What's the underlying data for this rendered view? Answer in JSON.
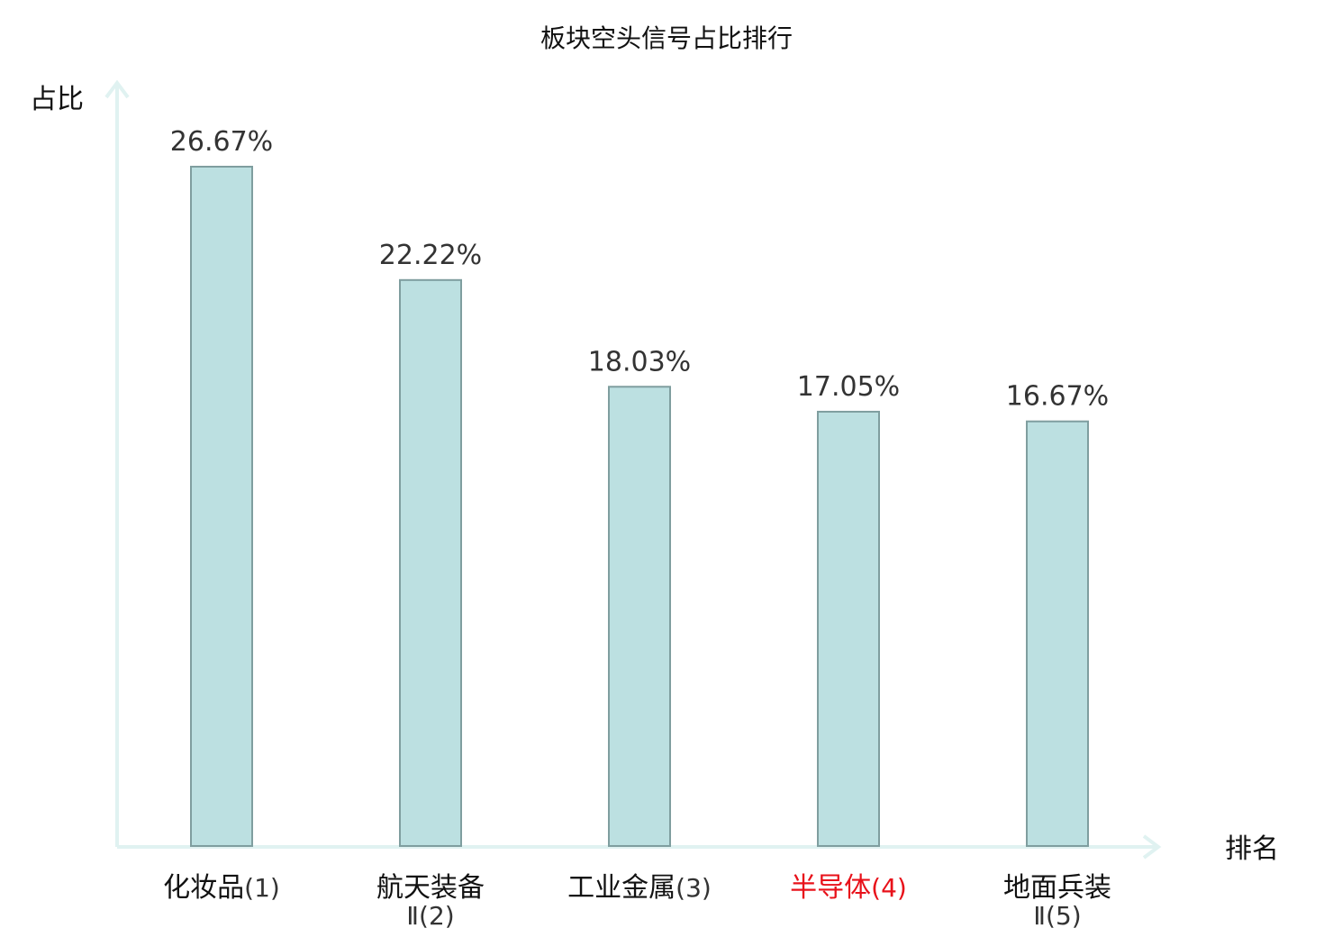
{
  "chart_data": {
    "type": "bar",
    "title": "板块空头信号占比排行",
    "ylabel": "占比",
    "xlabel": "排名",
    "categories": [
      {
        "name": "化妆品",
        "rank": "(1)",
        "line2": "",
        "highlight": false
      },
      {
        "name": "航天装备",
        "rank": "",
        "line2": "Ⅱ(2)",
        "highlight": false
      },
      {
        "name": "工业金属",
        "rank": "(3)",
        "line2": "",
        "highlight": false
      },
      {
        "name": "半导体",
        "rank": "(4)",
        "line2": "",
        "highlight": true
      },
      {
        "name": "地面兵装",
        "rank": "",
        "line2": "Ⅱ(5)",
        "highlight": false
      }
    ],
    "values": [
      26.67,
      22.22,
      18.03,
      17.05,
      16.67
    ],
    "value_labels": [
      "26.67%",
      "22.22%",
      "18.03%",
      "17.05%",
      "16.67%"
    ],
    "ylim": [
      0,
      30
    ],
    "grid": false,
    "legend": "none"
  },
  "colors": {
    "bar_fill": "#bce0e1",
    "bar_stroke": "#7f9e9f",
    "axis": "#e0f2f1",
    "highlight_text": "#e8111a",
    "text": "#111111",
    "value_text": "#333333"
  }
}
